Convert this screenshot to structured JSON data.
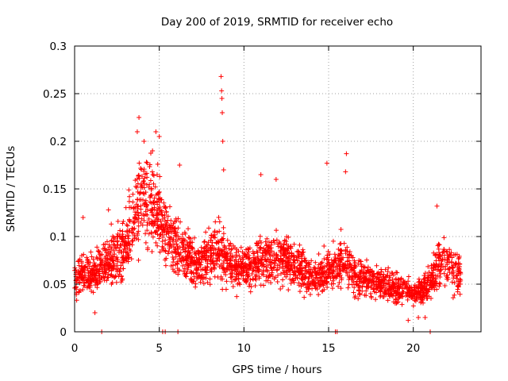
{
  "chart_data": {
    "type": "scatter",
    "title": "Day 200 of 2019, SRMTID for receiver echo",
    "xlabel": "GPS time / hours",
    "ylabel": "SRMTID / TECUs",
    "xlim": [
      0,
      24
    ],
    "ylim": [
      0,
      0.3
    ],
    "xticks": [
      0,
      5,
      10,
      15,
      20
    ],
    "xtick_labels": [
      "0",
      "5",
      "10",
      "15",
      "20"
    ],
    "yticks": [
      0,
      0.05,
      0.1,
      0.15,
      0.2,
      0.25,
      0.3
    ],
    "ytick_labels": [
      "0",
      "0.05",
      "0.1",
      "0.15",
      "0.2",
      "0.25",
      "0.3"
    ],
    "grid": true,
    "marker": "+",
    "color": "#ff0000",
    "series": [
      {
        "name": "SRMTID",
        "trend": [
          [
            0.0,
            0.055
          ],
          [
            0.5,
            0.065
          ],
          [
            1.0,
            0.06
          ],
          [
            1.5,
            0.065
          ],
          [
            2.0,
            0.075
          ],
          [
            2.5,
            0.08
          ],
          [
            3.0,
            0.09
          ],
          [
            3.5,
            0.12
          ],
          [
            4.0,
            0.14
          ],
          [
            4.5,
            0.14
          ],
          [
            5.0,
            0.12
          ],
          [
            5.5,
            0.1
          ],
          [
            6.0,
            0.09
          ],
          [
            6.5,
            0.085
          ],
          [
            7.0,
            0.075
          ],
          [
            7.5,
            0.075
          ],
          [
            8.0,
            0.08
          ],
          [
            8.5,
            0.085
          ],
          [
            9.0,
            0.075
          ],
          [
            9.5,
            0.065
          ],
          [
            10.0,
            0.065
          ],
          [
            10.5,
            0.07
          ],
          [
            11.0,
            0.075
          ],
          [
            11.5,
            0.075
          ],
          [
            12.0,
            0.08
          ],
          [
            12.5,
            0.075
          ],
          [
            13.0,
            0.07
          ],
          [
            13.5,
            0.065
          ],
          [
            14.0,
            0.055
          ],
          [
            14.5,
            0.06
          ],
          [
            15.0,
            0.065
          ],
          [
            15.5,
            0.07
          ],
          [
            16.0,
            0.075
          ],
          [
            16.5,
            0.06
          ],
          [
            17.0,
            0.055
          ],
          [
            17.5,
            0.055
          ],
          [
            18.0,
            0.05
          ],
          [
            18.5,
            0.05
          ],
          [
            19.0,
            0.045
          ],
          [
            19.5,
            0.045
          ],
          [
            20.0,
            0.04
          ],
          [
            20.5,
            0.045
          ],
          [
            21.0,
            0.05
          ],
          [
            21.5,
            0.075
          ],
          [
            22.0,
            0.07
          ],
          [
            22.5,
            0.065
          ],
          [
            22.8,
            0.06
          ]
        ],
        "outliers": [
          [
            8.65,
            0.268
          ],
          [
            8.68,
            0.253
          ],
          [
            8.7,
            0.245
          ],
          [
            8.72,
            0.23
          ],
          [
            8.75,
            0.2
          ],
          [
            8.8,
            0.17
          ],
          [
            3.8,
            0.225
          ],
          [
            3.7,
            0.21
          ],
          [
            4.1,
            0.2
          ],
          [
            4.8,
            0.21
          ],
          [
            5.0,
            0.205
          ],
          [
            4.6,
            0.19
          ],
          [
            14.9,
            0.177
          ],
          [
            16.05,
            0.187
          ],
          [
            16.0,
            0.168
          ],
          [
            21.4,
            0.132
          ],
          [
            0.5,
            0.12
          ],
          [
            2.0,
            0.128
          ],
          [
            6.2,
            0.175
          ],
          [
            11.0,
            0.165
          ],
          [
            11.9,
            0.16
          ],
          [
            1.2,
            0.02
          ],
          [
            19.7,
            0.012
          ],
          [
            20.3,
            0.015
          ],
          [
            20.7,
            0.015
          ]
        ],
        "axis_points": [
          1.6,
          5.2,
          5.35,
          6.1,
          15.4,
          15.5,
          21.0
        ]
      }
    ]
  }
}
